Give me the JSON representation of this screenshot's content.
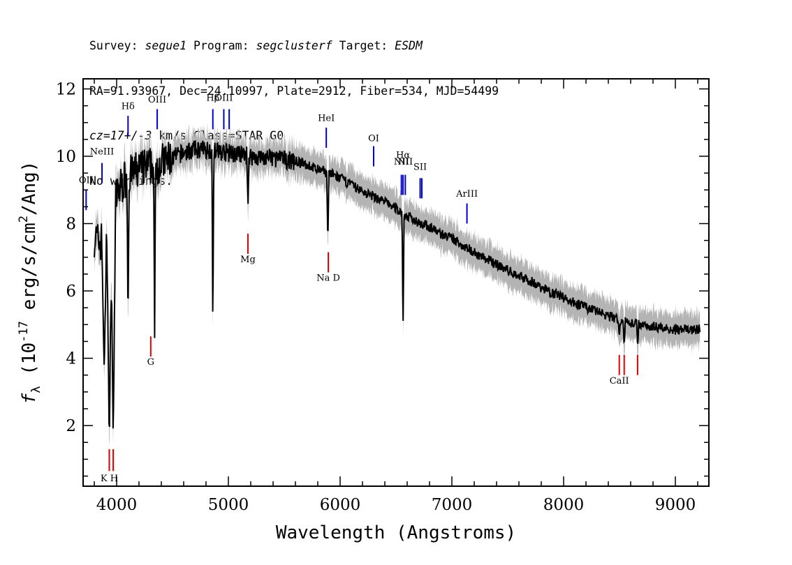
{
  "header": {
    "survey_label": "Survey:",
    "survey": "segue1",
    "program_label": "Program:",
    "program": "segclusterf",
    "target_label": "Target:",
    "target": "ESDM",
    "line2": "RA=91.93967, Dec=24.10997, Plate=2912, Fiber=534, MJD=54499",
    "redshift": "cz=17+/-3",
    "redshift_unit_class": " km/s Class=STAR G0",
    "warnings": "No warnings."
  },
  "chart_data": {
    "type": "line",
    "xlabel": "Wavelength (Angstroms)",
    "ylabel": "f_λ (10^-17 erg/s/cm^2/Ang)",
    "xlim": [
      3700,
      9300
    ],
    "ylim": [
      0.2,
      12.3
    ],
    "x_ticks": [
      4000,
      5000,
      6000,
      7000,
      8000,
      9000
    ],
    "y_ticks": [
      2,
      4,
      6,
      8,
      10,
      12
    ],
    "grid": false,
    "series": [
      {
        "role": "flux",
        "color": "#000000",
        "x": [
          3800,
          3850,
          3900,
          3950,
          4000,
          4050,
          4100,
          4150,
          4200,
          4300,
          4400,
          4500,
          4600,
          4700,
          4800,
          4900,
          5000,
          5100,
          5200,
          5300,
          5400,
          5500,
          5600,
          5700,
          5800,
          5900,
          6000,
          6100,
          6200,
          6300,
          6400,
          6500,
          6600,
          6700,
          6800,
          6900,
          7000,
          7100,
          7200,
          7300,
          7400,
          7500,
          7600,
          7700,
          7800,
          7900,
          8000,
          8100,
          8200,
          8300,
          8400,
          8500,
          8600,
          8700,
          8800,
          8900,
          9000,
          9100,
          9200
        ],
        "y": [
          7.6,
          7.4,
          7.8,
          8.3,
          8.8,
          9.2,
          9.4,
          9.5,
          9.6,
          9.7,
          9.8,
          9.95,
          10.1,
          10.2,
          10.2,
          10.15,
          10.1,
          10.05,
          10.0,
          9.95,
          9.95,
          9.9,
          9.85,
          9.75,
          9.6,
          9.5,
          9.35,
          9.15,
          8.95,
          8.8,
          8.65,
          8.45,
          8.2,
          8.05,
          7.9,
          7.7,
          7.55,
          7.35,
          7.15,
          6.95,
          6.8,
          6.6,
          6.45,
          6.3,
          6.1,
          5.95,
          5.8,
          5.65,
          5.5,
          5.4,
          5.25,
          5.15,
          5.05,
          5.0,
          4.95,
          4.9,
          4.85,
          4.85,
          4.85
        ]
      }
    ],
    "absorption_features": [
      {
        "x": 3934,
        "depth_to": 1.4
      },
      {
        "x": 3969,
        "depth_to": 1.6
      },
      {
        "x": 3889,
        "depth_to": 3.6
      },
      {
        "x": 4102,
        "depth_to": 4.8
      },
      {
        "x": 4340,
        "depth_to": 4.6
      },
      {
        "x": 4861,
        "depth_to": 4.8
      },
      {
        "x": 5175,
        "depth_to": 8.4
      },
      {
        "x": 5890,
        "depth_to": 7.3
      },
      {
        "x": 6563,
        "depth_to": 4.7
      },
      {
        "x": 8498,
        "depth_to": 4.6
      },
      {
        "x": 8542,
        "depth_to": 4.3
      },
      {
        "x": 8662,
        "depth_to": 4.3
      }
    ],
    "emission_lines": [
      {
        "label": "OII",
        "x": 3727,
        "y0": 8.4,
        "y1": 9.0,
        "label_y": 9.2
      },
      {
        "label": "NeIII",
        "x": 3869,
        "y0": 9.2,
        "y1": 9.8,
        "label_y": 10.05
      },
      {
        "label": "Hδ",
        "x": 4102,
        "y0": 10.6,
        "y1": 11.2,
        "label_y": 11.4
      },
      {
        "label": "OIII",
        "x": 4363,
        "y0": 10.8,
        "y1": 11.4,
        "label_y": 11.6
      },
      {
        "label": "Hβ",
        "x": 4861,
        "y0": 10.8,
        "y1": 11.4,
        "label_y": 11.65
      },
      {
        "label": "OIII",
        "x": 4959,
        "y0": 10.8,
        "y1": 11.4,
        "label_y": 11.65
      },
      {
        "label": "",
        "x": 5007,
        "y0": 10.8,
        "y1": 11.4,
        "label_y": 11.65
      },
      {
        "label": "HeI",
        "x": 5876,
        "y0": 10.25,
        "y1": 10.85,
        "label_y": 11.05
      },
      {
        "label": "OI",
        "x": 6300,
        "y0": 9.7,
        "y1": 10.3,
        "label_y": 10.45
      },
      {
        "label": "NII",
        "x": 6548,
        "y0": 8.85,
        "y1": 9.45,
        "label_y": 9.75
      },
      {
        "label": "Hα",
        "x": 6563,
        "y0": 8.85,
        "y1": 9.45,
        "label_y": 9.95
      },
      {
        "label": "NII",
        "x": 6583,
        "y0": 8.85,
        "y1": 9.45,
        "label_y": 9.75
      },
      {
        "label": "SII",
        "x": 6716,
        "y0": 8.75,
        "y1": 9.35,
        "label_y": 9.6
      },
      {
        "label": "",
        "x": 6731,
        "y0": 8.75,
        "y1": 9.35,
        "label_y": 9.6
      },
      {
        "label": "ArIII",
        "x": 7135,
        "y0": 8.0,
        "y1": 8.6,
        "label_y": 8.8
      }
    ],
    "absorption_lines": [
      {
        "label": "K H",
        "x": 3934,
        "y0": 0.65,
        "y1": 1.3,
        "label_y": 0.35
      },
      {
        "label": "",
        "x": 3969,
        "y0": 0.65,
        "y1": 1.3,
        "label_y": 0.35
      },
      {
        "label": "G",
        "x": 4305,
        "y0": 4.05,
        "y1": 4.65,
        "label_y": 3.8
      },
      {
        "label": "Mg",
        "x": 5175,
        "y0": 7.1,
        "y1": 7.7,
        "label_y": 6.85
      },
      {
        "label": "Na D",
        "x": 5894,
        "y0": 6.55,
        "y1": 7.15,
        "label_y": 6.3
      },
      {
        "label": "CaII",
        "x": 8498,
        "y0": 3.5,
        "y1": 4.1,
        "label_y": 3.25
      },
      {
        "label": "",
        "x": 8542,
        "y0": 3.5,
        "y1": 4.1,
        "label_y": 3.25
      },
      {
        "label": "",
        "x": 8662,
        "y0": 3.5,
        "y1": 4.1,
        "label_y": 3.25
      }
    ],
    "colors": {
      "flux": "#000000",
      "error_band": "#b4b4b4",
      "emission": "#0000cc",
      "absorption": "#e00000"
    }
  }
}
